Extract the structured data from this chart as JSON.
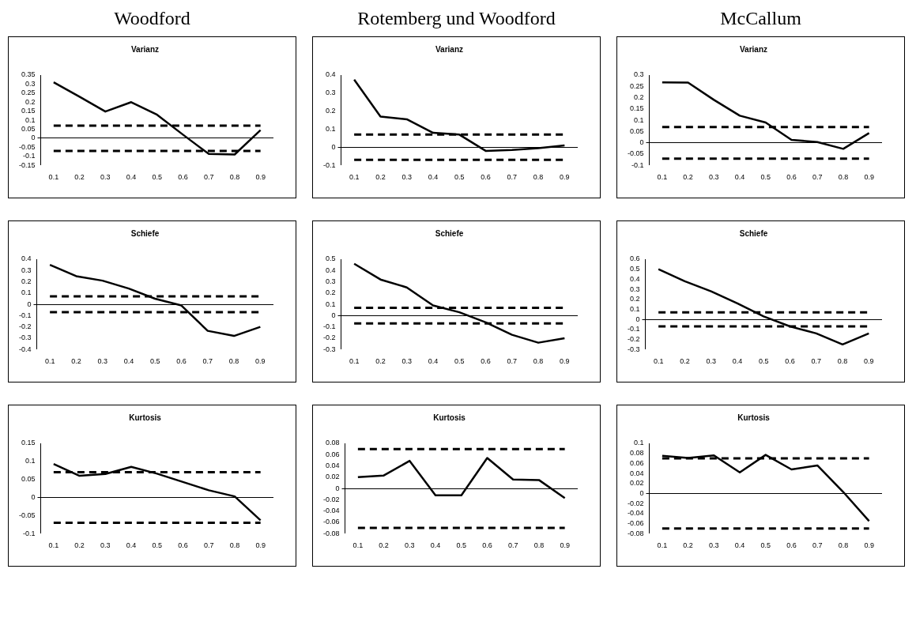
{
  "chart_data": [
    {
      "type": "line",
      "subtitle": "Woodford",
      "title": "Varianz",
      "categories": [
        "0.1",
        "0.2",
        "0.3",
        "0.4",
        "0.5",
        "0.6",
        "0.7",
        "0.8",
        "0.9"
      ],
      "values": [
        0.31,
        0.23,
        0.148,
        0.2,
        0.13,
        0.02,
        -0.087,
        -0.09,
        0.045
      ],
      "color": "#000000",
      "ylim": [
        -0.15,
        0.35
      ],
      "yticks": [
        -0.15,
        -0.1,
        -0.05,
        0,
        0.05,
        0.1,
        0.15,
        0.2,
        0.25,
        0.3,
        0.35
      ],
      "marker": "none",
      "line_style": "solid",
      "ref_lines": [
        {
          "axis": "y",
          "value": 0.07,
          "line_style": "dashed"
        },
        {
          "axis": "y",
          "value": -0.07,
          "line_style": "dashed"
        }
      ]
    },
    {
      "type": "line",
      "subtitle": "Rotemberg und Woodford",
      "title": "Varianz",
      "categories": [
        "0.1",
        "0.2",
        "0.3",
        "0.4",
        "0.5",
        "0.6",
        "0.7",
        "0.8",
        "0.9"
      ],
      "values": [
        0.375,
        0.17,
        0.155,
        0.08,
        0.07,
        -0.02,
        -0.015,
        -0.005,
        0.01
      ],
      "color": "#000000",
      "ylim": [
        -0.1,
        0.4
      ],
      "yticks": [
        -0.1,
        0,
        0.1,
        0.2,
        0.3,
        0.4
      ],
      "marker": "none",
      "line_style": "solid",
      "ref_lines": [
        {
          "axis": "y",
          "value": 0.07,
          "line_style": "dashed"
        },
        {
          "axis": "y",
          "value": -0.07,
          "line_style": "dashed"
        }
      ]
    },
    {
      "type": "line",
      "subtitle": "McCallum",
      "title": "Varianz",
      "categories": [
        "0.1",
        "0.2",
        "0.3",
        "0.4",
        "0.5",
        "0.6",
        "0.7",
        "0.8",
        "0.9"
      ],
      "values": [
        0.268,
        0.267,
        0.19,
        0.12,
        0.09,
        0.013,
        0.003,
        -0.027,
        0.043
      ],
      "color": "#000000",
      "ylim": [
        -0.1,
        0.3
      ],
      "yticks": [
        -0.1,
        -0.05,
        0,
        0.05,
        0.1,
        0.15,
        0.2,
        0.25,
        0.3
      ],
      "marker": "none",
      "line_style": "solid",
      "ref_lines": [
        {
          "axis": "y",
          "value": 0.07,
          "line_style": "dashed"
        },
        {
          "axis": "y",
          "value": -0.07,
          "line_style": "dashed"
        }
      ]
    },
    {
      "type": "line",
      "title": "Schiefe",
      "categories": [
        "0.1",
        "0.2",
        "0.3",
        "0.4",
        "0.5",
        "0.6",
        "0.7",
        "0.8",
        "0.9"
      ],
      "values": [
        0.35,
        0.25,
        0.21,
        0.14,
        0.05,
        -0.01,
        -0.235,
        -0.28,
        -0.2
      ],
      "color": "#000000",
      "ylim": [
        -0.4,
        0.4
      ],
      "yticks": [
        -0.4,
        -0.3,
        -0.2,
        -0.1,
        0,
        0.1,
        0.2,
        0.3,
        0.4
      ],
      "marker": "none",
      "line_style": "solid",
      "ref_lines": [
        {
          "axis": "y",
          "value": 0.07,
          "line_style": "dashed"
        },
        {
          "axis": "y",
          "value": -0.07,
          "line_style": "dashed"
        }
      ]
    },
    {
      "type": "line",
      "title": "Schiefe",
      "categories": [
        "0.1",
        "0.2",
        "0.3",
        "0.4",
        "0.5",
        "0.6",
        "0.7",
        "0.8",
        "0.9"
      ],
      "values": [
        0.46,
        0.32,
        0.25,
        0.09,
        0.03,
        -0.06,
        -0.17,
        -0.24,
        -0.2
      ],
      "color": "#000000",
      "ylim": [
        -0.3,
        0.5
      ],
      "yticks": [
        -0.3,
        -0.2,
        -0.1,
        0,
        0.1,
        0.2,
        0.3,
        0.4,
        0.5
      ],
      "marker": "none",
      "line_style": "solid",
      "ref_lines": [
        {
          "axis": "y",
          "value": 0.07,
          "line_style": "dashed"
        },
        {
          "axis": "y",
          "value": -0.07,
          "line_style": "dashed"
        }
      ]
    },
    {
      "type": "line",
      "title": "Schiefe",
      "categories": [
        "0.1",
        "0.2",
        "0.3",
        "0.4",
        "0.5",
        "0.6",
        "0.7",
        "0.8",
        "0.9"
      ],
      "values": [
        0.5,
        0.38,
        0.28,
        0.16,
        0.03,
        -0.07,
        -0.14,
        -0.25,
        -0.14
      ],
      "color": "#000000",
      "ylim": [
        -0.3,
        0.6
      ],
      "yticks": [
        -0.3,
        -0.2,
        -0.1,
        0,
        0.1,
        0.2,
        0.3,
        0.4,
        0.5,
        0.6
      ],
      "marker": "none",
      "line_style": "solid",
      "ref_lines": [
        {
          "axis": "y",
          "value": 0.07,
          "line_style": "dashed"
        },
        {
          "axis": "y",
          "value": -0.07,
          "line_style": "dashed"
        }
      ]
    },
    {
      "type": "line",
      "title": "Kurtosis",
      "categories": [
        "0.1",
        "0.2",
        "0.3",
        "0.4",
        "0.5",
        "0.6",
        "0.7",
        "0.8",
        "0.9"
      ],
      "values": [
        0.093,
        0.06,
        0.065,
        0.085,
        0.066,
        0.043,
        0.02,
        0.003,
        -0.063
      ],
      "color": "#000000",
      "ylim": [
        -0.1,
        0.15
      ],
      "yticks": [
        -0.1,
        -0.05,
        0,
        0.05,
        0.1,
        0.15
      ],
      "marker": "none",
      "line_style": "solid",
      "ref_lines": [
        {
          "axis": "y",
          "value": 0.07,
          "line_style": "dashed"
        },
        {
          "axis": "y",
          "value": -0.07,
          "line_style": "dashed"
        }
      ]
    },
    {
      "type": "line",
      "title": "Kurtosis",
      "categories": [
        "0.1",
        "0.2",
        "0.3",
        "0.4",
        "0.5",
        "0.6",
        "0.7",
        "0.8",
        "0.9"
      ],
      "values": [
        0.02,
        0.023,
        0.049,
        -0.012,
        -0.012,
        0.054,
        0.016,
        0.015,
        -0.017
      ],
      "color": "#000000",
      "ylim": [
        -0.08,
        0.08
      ],
      "yticks": [
        -0.08,
        -0.06,
        -0.04,
        -0.02,
        0,
        0.02,
        0.04,
        0.06,
        0.08
      ],
      "marker": "none",
      "line_style": "solid",
      "ref_lines": [
        {
          "axis": "y",
          "value": 0.07,
          "line_style": "dashed"
        },
        {
          "axis": "y",
          "value": -0.07,
          "line_style": "dashed"
        }
      ]
    },
    {
      "type": "line",
      "title": "Kurtosis",
      "categories": [
        "0.1",
        "0.2",
        "0.3",
        "0.4",
        "0.5",
        "0.6",
        "0.7",
        "0.8",
        "0.9"
      ],
      "values": [
        0.075,
        0.071,
        0.076,
        0.042,
        0.077,
        0.048,
        0.056,
        0.003,
        -0.055
      ],
      "color": "#000000",
      "ylim": [
        -0.08,
        0.1
      ],
      "yticks": [
        -0.08,
        -0.06,
        -0.04,
        -0.02,
        0,
        0.02,
        0.04,
        0.06,
        0.08,
        0.1
      ],
      "marker": "none",
      "line_style": "solid",
      "ref_lines": [
        {
          "axis": "y",
          "value": 0.07,
          "line_style": "dashed"
        },
        {
          "axis": "y",
          "value": -0.07,
          "line_style": "dashed"
        }
      ]
    }
  ]
}
